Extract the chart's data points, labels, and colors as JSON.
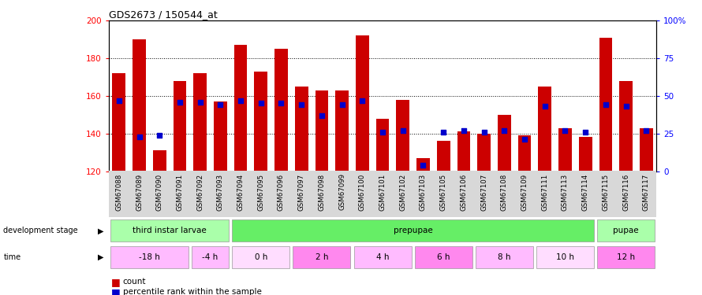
{
  "title": "GDS2673 / 150544_at",
  "samples": [
    "GSM67088",
    "GSM67089",
    "GSM67090",
    "GSM67091",
    "GSM67092",
    "GSM67093",
    "GSM67094",
    "GSM67095",
    "GSM67096",
    "GSM67097",
    "GSM67098",
    "GSM67099",
    "GSM67100",
    "GSM67101",
    "GSM67102",
    "GSM67103",
    "GSM67105",
    "GSM67106",
    "GSM67107",
    "GSM67108",
    "GSM67109",
    "GSM67111",
    "GSM67113",
    "GSM67114",
    "GSM67115",
    "GSM67116",
    "GSM67117"
  ],
  "counts": [
    172,
    190,
    131,
    168,
    172,
    157,
    187,
    173,
    185,
    165,
    163,
    163,
    192,
    148,
    158,
    127,
    136,
    141,
    140,
    150,
    139,
    165,
    143,
    138,
    191,
    168,
    143
  ],
  "percentile_ranks": [
    47,
    23,
    24,
    46,
    46,
    44,
    47,
    45,
    45,
    44,
    37,
    44,
    47,
    26,
    27,
    4,
    26,
    27,
    26,
    27,
    21,
    43,
    27,
    26,
    44,
    43,
    27
  ],
  "ymin": 120,
  "ymax": 200,
  "yticks": [
    120,
    140,
    160,
    180,
    200
  ],
  "y2ticks": [
    0,
    25,
    50,
    75,
    100
  ],
  "bar_color": "#cc0000",
  "percentile_color": "#0000cc",
  "stages": [
    {
      "label": "third instar larvae",
      "start": 0,
      "end": 6,
      "color": "#aaffaa"
    },
    {
      "label": "prepupae",
      "start": 6,
      "end": 24,
      "color": "#66ee66"
    },
    {
      "label": "pupae",
      "start": 24,
      "end": 27,
      "color": "#aaffaa"
    }
  ],
  "times": [
    {
      "label": "-18 h",
      "start": 0,
      "end": 4,
      "color": "#ffbbff"
    },
    {
      "label": "-4 h",
      "start": 4,
      "end": 6,
      "color": "#ffbbff"
    },
    {
      "label": "0 h",
      "start": 6,
      "end": 9,
      "color": "#ffddff"
    },
    {
      "label": "2 h",
      "start": 9,
      "end": 12,
      "color": "#ff88ee"
    },
    {
      "label": "4 h",
      "start": 12,
      "end": 15,
      "color": "#ffbbff"
    },
    {
      "label": "6 h",
      "start": 15,
      "end": 18,
      "color": "#ff88ee"
    },
    {
      "label": "8 h",
      "start": 18,
      "end": 21,
      "color": "#ffbbff"
    },
    {
      "label": "10 h",
      "start": 21,
      "end": 24,
      "color": "#ffddff"
    },
    {
      "label": "12 h",
      "start": 24,
      "end": 27,
      "color": "#ff88ee"
    }
  ]
}
